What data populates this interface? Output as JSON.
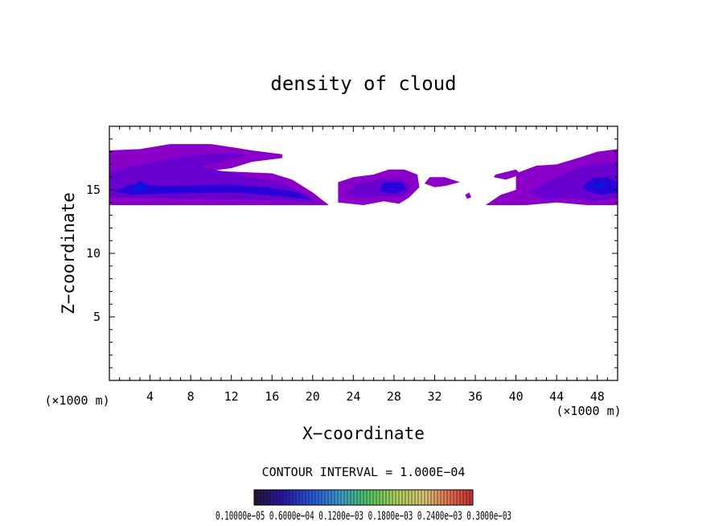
{
  "chart_data": {
    "type": "heatmap",
    "title": "density of cloud",
    "xlabel": "X−coordinate",
    "ylabel": "Z−coordinate",
    "x_unit_left": "(×1000 m)",
    "x_unit_right": "(×1000 m)",
    "xlim": [
      0,
      50
    ],
    "ylim": [
      0,
      20
    ],
    "x_ticks": [
      4,
      8,
      12,
      16,
      20,
      24,
      28,
      32,
      36,
      40,
      44,
      48
    ],
    "y_ticks": [
      5,
      10,
      15
    ],
    "contour_interval_text": "CONTOUR INTERVAL = 1.000E−04",
    "colorbar_labels_text": "0.10000e−05  0.6000e−04  0.1200e−03  0.1800e−03  0.2400e−03  0.3000e−03",
    "colorbar_values": [
      1e-06,
      6e-05,
      0.00012,
      0.00018,
      0.00024,
      0.0003
    ],
    "colors": {
      "low": "#8b00c8",
      "mid": "#6a00d0",
      "high": "#2a00d8",
      "core": "#1010e0"
    },
    "cloud_regions": [
      {
        "name": "left-main-band",
        "x": [
          0,
          22
        ],
        "z": [
          13.8,
          18.6
        ]
      },
      {
        "name": "middle-blob",
        "x": [
          22.5,
          30.5
        ],
        "z": [
          13.8,
          16.6
        ]
      },
      {
        "name": "small-fragment",
        "x": [
          31,
          34.5
        ],
        "z": [
          15.3,
          16.0
        ]
      },
      {
        "name": "right-band",
        "x": [
          37,
          50
        ],
        "z": [
          13.8,
          18.2
        ]
      }
    ]
  }
}
